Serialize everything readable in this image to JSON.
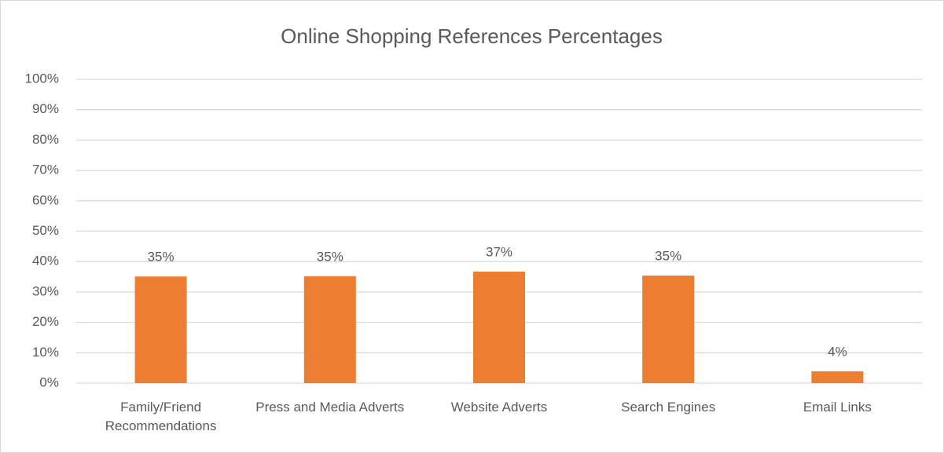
{
  "chart_data": {
    "type": "bar",
    "title": "Online Shopping References Percentages",
    "categories": [
      "Family/Friend Recommendations",
      "Press and Media Adverts",
      "Website Adverts",
      "Search Engines",
      "Email Links"
    ],
    "values": [
      35.1,
      35.2,
      36.7,
      35.4,
      3.9
    ],
    "value_labels": [
      "35%",
      "35%",
      "37%",
      "35%",
      "4%"
    ],
    "color": "#ed7d31",
    "ylim": [
      0,
      100
    ],
    "yticks": [
      {
        "value": 0,
        "label": "0%"
      },
      {
        "value": 10,
        "label": "10%"
      },
      {
        "value": 20,
        "label": "20%"
      },
      {
        "value": 30,
        "label": "30%"
      },
      {
        "value": 40,
        "label": "40%"
      },
      {
        "value": 50,
        "label": "50%"
      },
      {
        "value": 60,
        "label": "60%"
      },
      {
        "value": 70,
        "label": "70%"
      },
      {
        "value": 80,
        "label": "80%"
      },
      {
        "value": 90,
        "label": "90%"
      },
      {
        "value": 100,
        "label": "100%"
      }
    ],
    "grid": true
  }
}
